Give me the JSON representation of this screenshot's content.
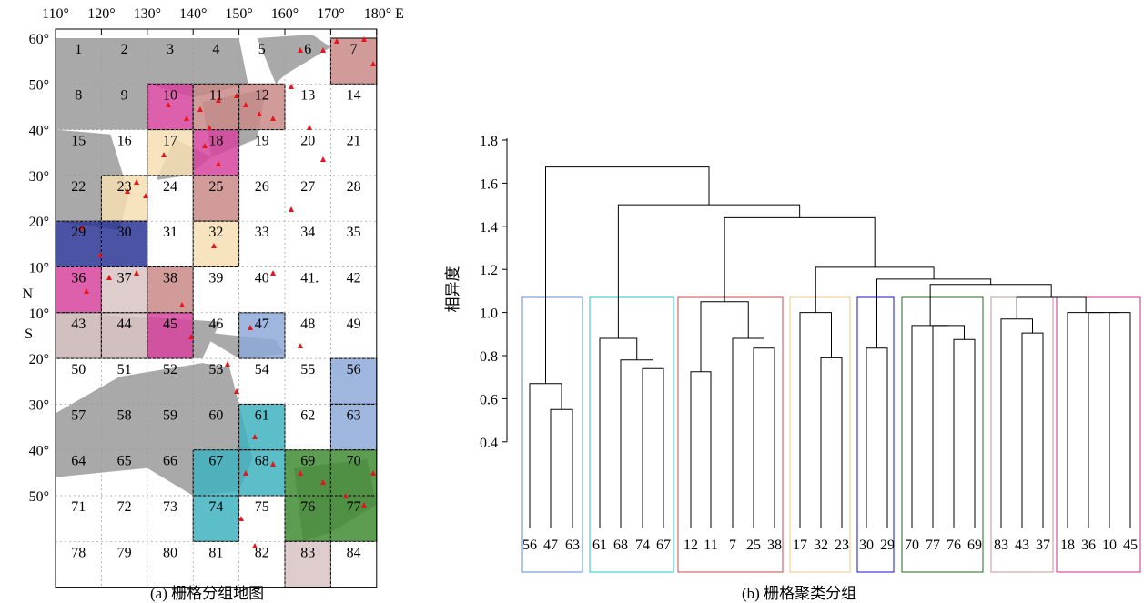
{
  "map": {
    "caption": "(a) 栅格分组地图",
    "lon_labels": [
      "110°",
      "120°",
      "130°",
      "140°",
      "150°",
      "160°",
      "170°",
      "180° E"
    ],
    "lat_labels": [
      "60°",
      "50°",
      "40°",
      "30°",
      "20°",
      "10°",
      "10°",
      "20°",
      "30°",
      "40°",
      "50°"
    ],
    "hemisphere_north": "N",
    "hemisphere_south": "S",
    "cells": [
      "1",
      "2",
      "3",
      "4",
      "5",
      "6",
      "7",
      "8",
      "9",
      "10",
      "11",
      "12",
      "13",
      "14",
      "15",
      "16",
      "17",
      "18",
      "19",
      "20",
      "21",
      "22",
      "23",
      "24",
      "25",
      "26",
      "27",
      "28",
      "29",
      "30",
      "31",
      "32",
      "33",
      "34",
      "35",
      "36",
      "37",
      "38",
      "39",
      "40",
      "41",
      "42",
      "43",
      "44",
      "45",
      "46",
      "47",
      "48",
      "49",
      "50",
      "51",
      "52",
      "53",
      "54",
      "55",
      "56",
      "57",
      "58",
      "59",
      "60",
      "61",
      "62",
      "63",
      "64",
      "65",
      "66",
      "67",
      "68",
      "69",
      "70",
      "71",
      "72",
      "73",
      "74",
      "75",
      "76",
      "77",
      "78",
      "79",
      "80",
      "81",
      "82",
      "83",
      "84"
    ],
    "stray_dot": ".",
    "group_colors": {
      "blue_light": "#8ea9d8",
      "cyan": "#3fb3bf",
      "rose": "#c98a88",
      "peach": "#f6dfb4",
      "navy": "#2b3595",
      "green": "#3f8c34",
      "mauve": "#d9c3c3",
      "magenta": "#d6449c",
      "land": "#a9a9a9",
      "marker": "#e8141c"
    }
  },
  "dendrogram": {
    "caption": "(b) 栅格聚类分组",
    "ylabel": "相异度",
    "yticks": [
      "1.8",
      "1.6",
      "1.4",
      "1.2",
      "1.0",
      "0.8",
      "0.6",
      "0.4"
    ],
    "leaves": [
      "56",
      "47",
      "63",
      "61",
      "68",
      "74",
      "67",
      "12",
      "11",
      "7",
      "25",
      "38",
      "17",
      "32",
      "23",
      "30",
      "29",
      "70",
      "77",
      "76",
      "69",
      "83",
      "43",
      "37",
      "18",
      "36",
      "10",
      "45"
    ],
    "box_colors": [
      "#5b8bd6",
      "#27c4c4",
      "#c84a4a",
      "#f0c888",
      "#1414c8",
      "#1f6b1f",
      "#b89a9a",
      "#d6268f"
    ]
  }
}
